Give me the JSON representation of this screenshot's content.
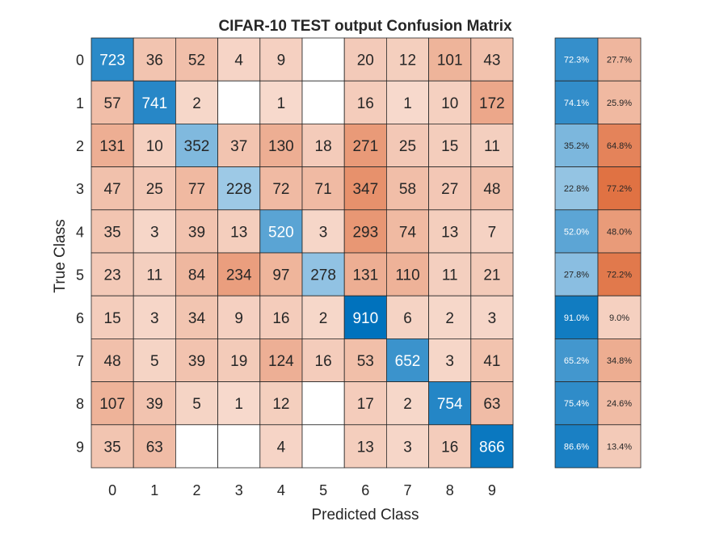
{
  "chart_data": {
    "type": "heatmap",
    "title": "CIFAR-10 TEST output Confusion Matrix",
    "xlabel": "Predicted Class",
    "ylabel": "True Class",
    "x_categories": [
      "0",
      "1",
      "2",
      "3",
      "4",
      "5",
      "6",
      "7",
      "8",
      "9"
    ],
    "y_categories": [
      "0",
      "1",
      "2",
      "3",
      "4",
      "5",
      "6",
      "7",
      "8",
      "9"
    ],
    "matrix": [
      [
        723,
        36,
        52,
        4,
        9,
        null,
        20,
        12,
        101,
        43
      ],
      [
        57,
        741,
        2,
        null,
        1,
        null,
        16,
        1,
        10,
        172
      ],
      [
        131,
        10,
        352,
        37,
        130,
        18,
        271,
        25,
        15,
        11
      ],
      [
        47,
        25,
        77,
        228,
        72,
        71,
        347,
        58,
        27,
        48
      ],
      [
        35,
        3,
        39,
        13,
        520,
        3,
        293,
        74,
        13,
        7
      ],
      [
        23,
        11,
        84,
        234,
        97,
        278,
        131,
        110,
        11,
        21
      ],
      [
        15,
        3,
        34,
        9,
        16,
        2,
        910,
        6,
        2,
        3
      ],
      [
        48,
        5,
        39,
        19,
        124,
        16,
        53,
        652,
        3,
        41
      ],
      [
        107,
        39,
        5,
        1,
        12,
        null,
        17,
        2,
        754,
        63
      ],
      [
        35,
        63,
        null,
        null,
        4,
        null,
        13,
        3,
        16,
        866
      ]
    ],
    "row_summary": {
      "correct": [
        "72.3%",
        "74.1%",
        "35.2%",
        "22.8%",
        "52.0%",
        "27.8%",
        "91.0%",
        "65.2%",
        "75.4%",
        "86.6%"
      ],
      "incorrect": [
        "27.7%",
        "25.9%",
        "64.8%",
        "77.2%",
        "48.0%",
        "72.2%",
        "9.0%",
        "34.8%",
        "24.6%",
        "13.4%"
      ]
    },
    "colors": {
      "correct_dark": "#0072bd",
      "correct_light": "#ffffff",
      "incorrect_dark": "#d95319",
      "incorrect_light": "#ffffff",
      "grid_line": "#262626",
      "text_dark": "#262626",
      "text_light": "#ffffff"
    }
  }
}
